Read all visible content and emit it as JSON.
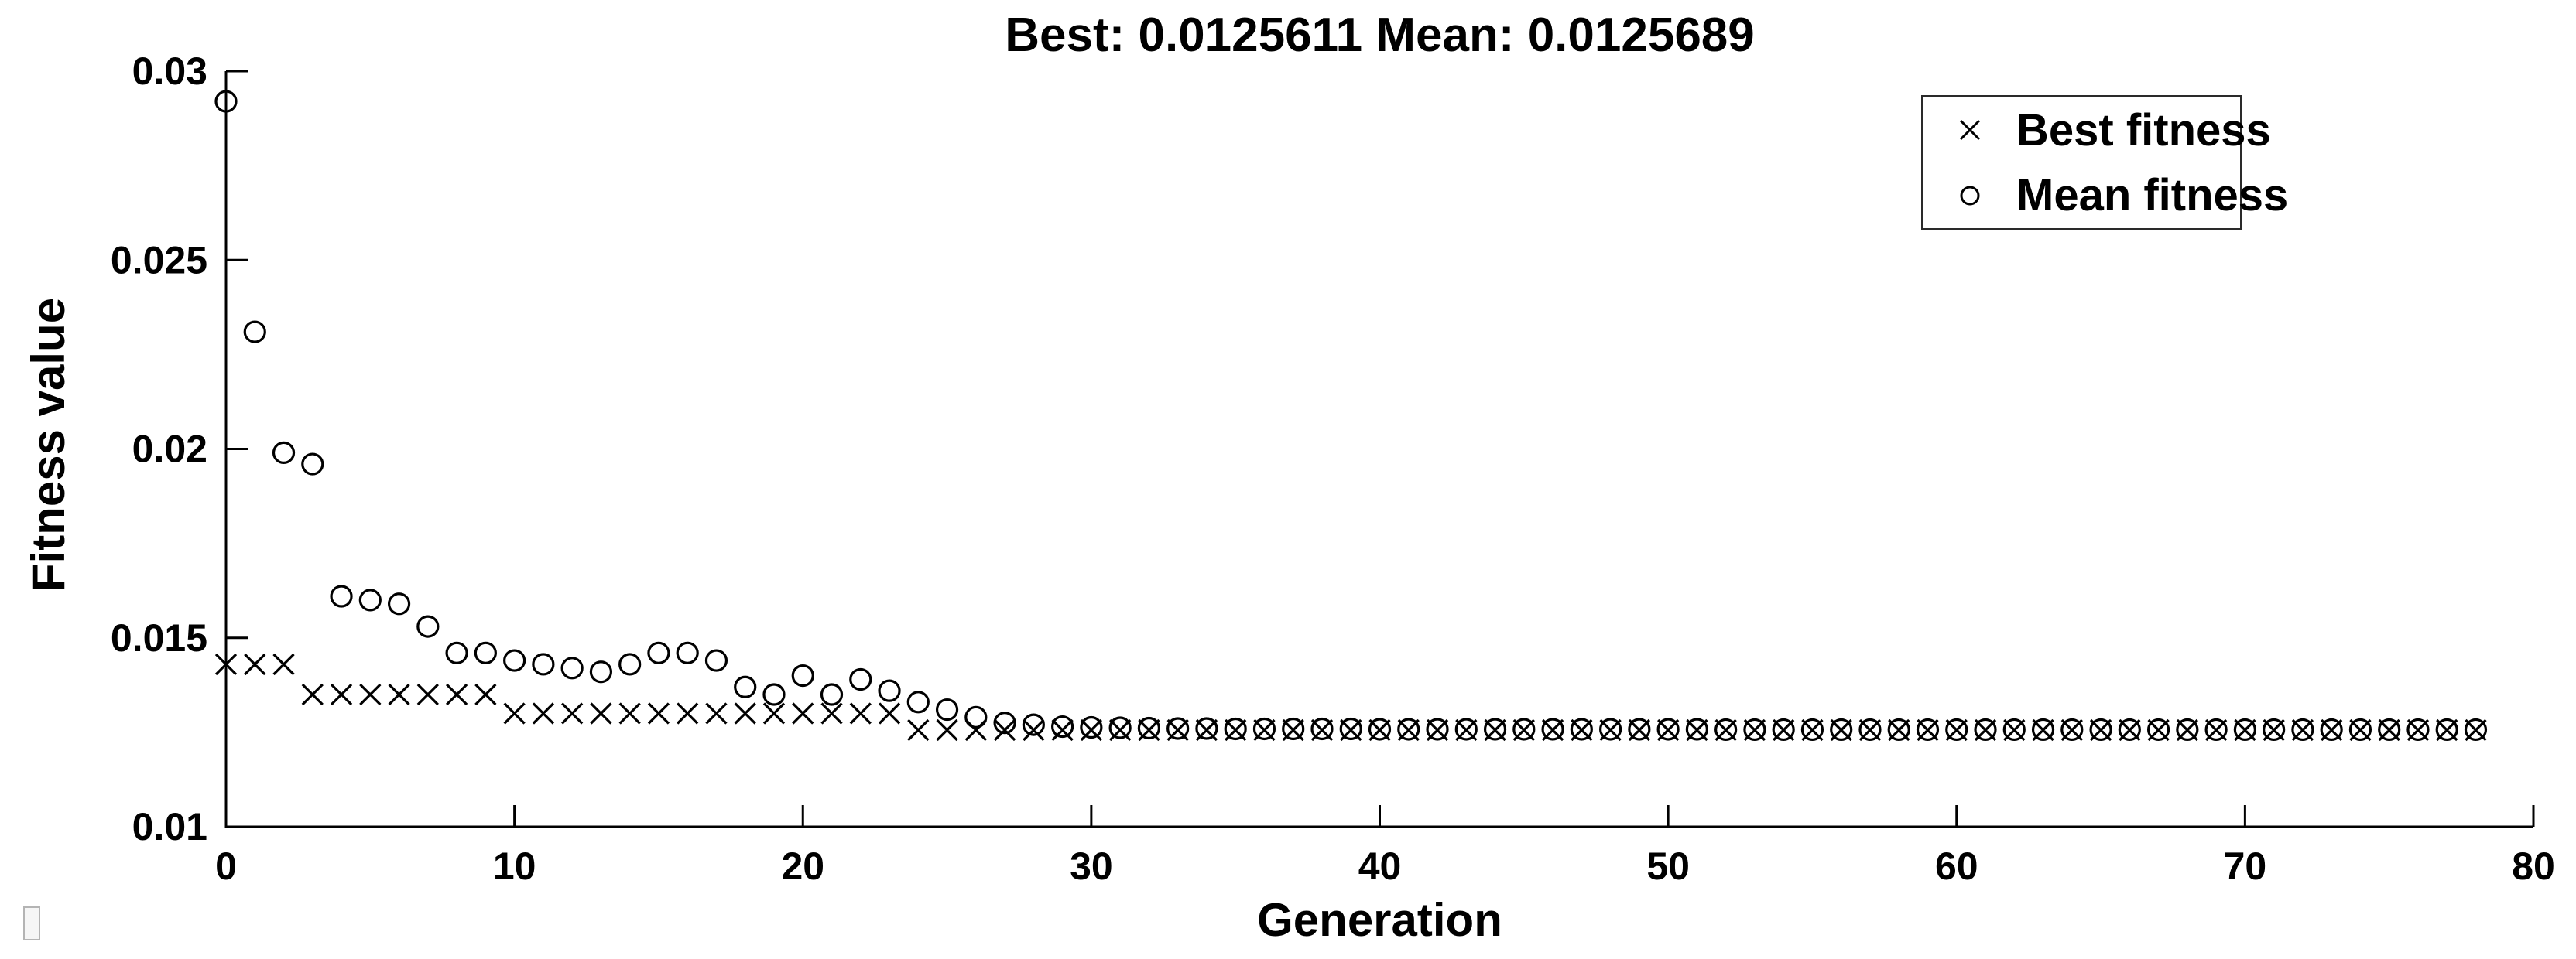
{
  "figure": {
    "background_color": "#ffffff",
    "foreground_color": "#000000"
  },
  "chart_data": {
    "type": "scatter",
    "title": "Best: 0.0125611 Mean: 0.0125689",
    "best_final": "0.0125611",
    "mean_final": "0.0125689",
    "xlabel": "Generation",
    "ylabel": "Fitness value",
    "xlim": [
      0,
      80
    ],
    "ylim": [
      0.01,
      0.03
    ],
    "xticks": [
      0,
      10,
      20,
      30,
      40,
      50,
      60,
      70,
      80
    ],
    "yticks": [
      0.01,
      0.015,
      0.02,
      0.025,
      0.03
    ],
    "ytick_labels": [
      "0.01",
      "0.015",
      "0.02",
      "0.025",
      "0.03"
    ],
    "grid": false,
    "legend_position": "top-right",
    "marker_color": "#000000",
    "x": [
      0,
      1,
      2,
      3,
      4,
      5,
      6,
      7,
      8,
      9,
      10,
      11,
      12,
      13,
      14,
      15,
      16,
      17,
      18,
      19,
      20,
      21,
      22,
      23,
      24,
      25,
      26,
      27,
      28,
      29,
      30,
      31,
      32,
      33,
      34,
      35,
      36,
      37,
      38,
      39,
      40,
      41,
      42,
      43,
      44,
      45,
      46,
      47,
      48,
      49,
      50,
      51,
      52,
      53,
      54,
      55,
      56,
      57,
      58,
      59,
      60,
      61,
      62,
      63,
      64,
      65,
      66,
      67,
      68,
      69,
      70,
      71,
      72,
      73,
      74,
      75,
      76,
      77,
      78
    ],
    "series": [
      {
        "name": "Best fitness",
        "marker": "x",
        "values": [
          0.0143,
          0.0143,
          0.0143,
          0.0135,
          0.0135,
          0.0135,
          0.0135,
          0.0135,
          0.0135,
          0.0135,
          0.013,
          0.013,
          0.013,
          0.013,
          0.013,
          0.013,
          0.013,
          0.013,
          0.013,
          0.013,
          0.013,
          0.013,
          0.013,
          0.013,
          0.01256,
          0.01256,
          0.01256,
          0.01256,
          0.01256,
          0.01256,
          0.01256,
          0.01256,
          0.01256,
          0.01256,
          0.01256,
          0.01256,
          0.01256,
          0.01256,
          0.01256,
          0.01256,
          0.01256,
          0.01256,
          0.01256,
          0.01256,
          0.01256,
          0.01256,
          0.01256,
          0.01256,
          0.01256,
          0.01256,
          0.01256,
          0.01256,
          0.01256,
          0.01256,
          0.01256,
          0.01256,
          0.01256,
          0.01256,
          0.01256,
          0.01256,
          0.01256,
          0.01256,
          0.01256,
          0.01256,
          0.01256,
          0.01256,
          0.01256,
          0.01256,
          0.01256,
          0.01256,
          0.01256,
          0.01256,
          0.01256,
          0.01256,
          0.01256,
          0.01256,
          0.01256,
          0.01256,
          0.01256
        ]
      },
      {
        "name": "Mean fitness",
        "marker": "o",
        "values": [
          0.0292,
          0.0231,
          0.0199,
          0.0196,
          0.0161,
          0.016,
          0.0159,
          0.0153,
          0.0146,
          0.0146,
          0.0144,
          0.0143,
          0.0142,
          0.0141,
          0.0143,
          0.0146,
          0.0146,
          0.0144,
          0.0137,
          0.0135,
          0.014,
          0.0135,
          0.0139,
          0.0136,
          0.0133,
          0.0131,
          0.0129,
          0.01275,
          0.0127,
          0.01265,
          0.01263,
          0.01262,
          0.01261,
          0.0126,
          0.0126,
          0.01259,
          0.01259,
          0.01259,
          0.01259,
          0.01259,
          0.01258,
          0.01258,
          0.01258,
          0.01258,
          0.01258,
          0.01258,
          0.01258,
          0.01258,
          0.01258,
          0.01258,
          0.01258,
          0.01258,
          0.01257,
          0.01257,
          0.01257,
          0.01257,
          0.01257,
          0.01257,
          0.01257,
          0.01257,
          0.01257,
          0.01257,
          0.01257,
          0.01257,
          0.01257,
          0.01257,
          0.01257,
          0.01257,
          0.01257,
          0.01257,
          0.01257,
          0.01257,
          0.01257,
          0.01257,
          0.01257,
          0.01257,
          0.01257,
          0.01257,
          0.01257
        ]
      }
    ]
  }
}
